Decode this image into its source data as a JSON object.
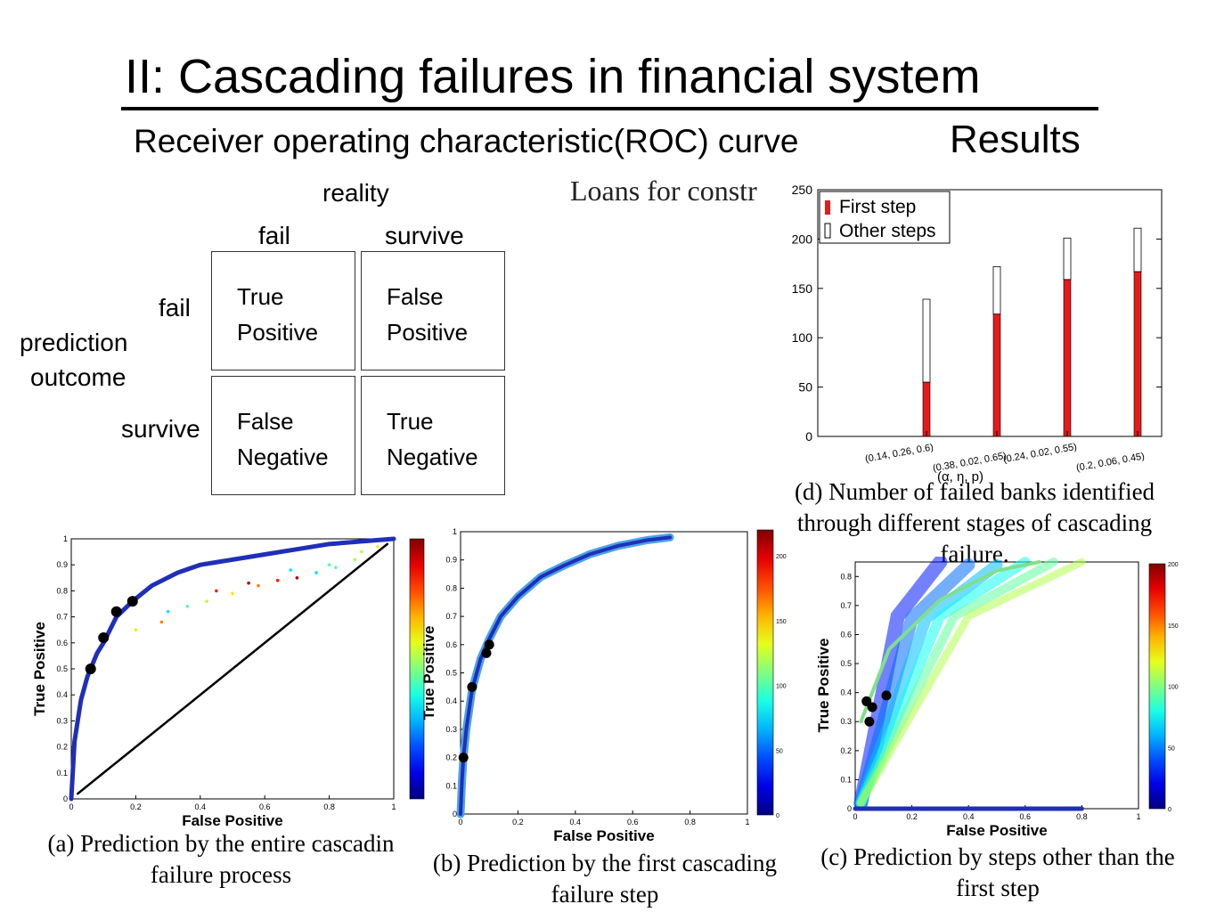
{
  "slide": {
    "title": "II: Cascading failures in financial system",
    "subtitle": "Receiver operating characteristic(ROC) curve",
    "results_label": "Results"
  },
  "confusion_matrix": {
    "reality_label": "reality",
    "col_fail": "fail",
    "col_survive": "survive",
    "row_fail": "fail",
    "row_survive": "survive",
    "prediction_label_1": "prediction",
    "prediction_label_2": "outcome",
    "tp_1": "True",
    "tp_2": "Positive",
    "fp_1": "False",
    "fp_2": "Positive",
    "fn_1": "False",
    "fn_2": "Negative",
    "tn_1": "True",
    "tn_2": "Negative"
  },
  "loans_heading": "Loans for constr",
  "caption_a": {
    "line1": "(a) Prediction by the entire cascadin",
    "line2": "failure process"
  },
  "caption_b": {
    "line1": "(b) Prediction by the first cascading",
    "line2": "failure step"
  },
  "caption_c": {
    "line1": "(c) Prediction by steps other than the",
    "line2": "first step"
  },
  "caption_d": {
    "line1": "(d) Number of failed banks identified",
    "line2": "through different stages of cascading",
    "line3": "failure."
  },
  "colors": {
    "first_step": "#e41a1c",
    "other_steps": "#ffffff",
    "roc_curve": "#1f2fb8"
  },
  "chart_data": [
    {
      "id": "d",
      "type": "bar",
      "stacked": true,
      "categories": [
        "(0.14, 0.26, 0.6)",
        "(0.38, 0.02, 0.65)",
        "(0.24, 0.02, 0.55)",
        "(0.2, 0.06, 0.45)"
      ],
      "series": [
        {
          "name": "First step",
          "values": [
            55,
            124,
            159,
            167
          ]
        },
        {
          "name": "Other steps",
          "values": [
            84,
            48,
            42,
            44
          ]
        }
      ],
      "xlabel": "(α, η, p)",
      "ylim": [
        0,
        250
      ],
      "yticks": [
        0,
        50,
        100,
        150,
        200,
        250
      ],
      "legend": "top-left"
    },
    {
      "id": "a",
      "type": "scatter",
      "xlabel": "False Positive",
      "ylabel": "True Positive",
      "xlim": [
        0,
        1
      ],
      "ylim": [
        0,
        1
      ],
      "xticks": [
        0,
        0.2,
        0.4,
        0.6,
        0.8,
        1
      ],
      "yticks": [
        0,
        0.1,
        0.2,
        0.3,
        0.4,
        0.5,
        0.6,
        0.7,
        0.8,
        0.9,
        1
      ],
      "curve": {
        "x": [
          0,
          0.01,
          0.03,
          0.05,
          0.08,
          0.1,
          0.14,
          0.19,
          0.25,
          0.33,
          0.4,
          0.5,
          0.6,
          0.7,
          0.8,
          0.9,
          1.0
        ],
        "y": [
          0,
          0.22,
          0.38,
          0.47,
          0.56,
          0.6,
          0.7,
          0.76,
          0.82,
          0.87,
          0.9,
          0.92,
          0.94,
          0.96,
          0.98,
          0.99,
          1.0
        ]
      },
      "scatter_points": {
        "x": [
          0.3,
          0.36,
          0.42,
          0.5,
          0.58,
          0.64,
          0.7,
          0.76,
          0.82,
          0.88,
          0.2,
          0.28,
          0.45,
          0.55,
          0.68,
          0.8,
          0.9,
          0.95
        ],
        "y": [
          0.72,
          0.74,
          0.76,
          0.79,
          0.82,
          0.84,
          0.85,
          0.87,
          0.89,
          0.92,
          0.65,
          0.68,
          0.8,
          0.83,
          0.88,
          0.9,
          0.95,
          0.97
        ]
      },
      "marked_points": {
        "x": [
          0.06,
          0.1,
          0.14,
          0.19
        ],
        "y": [
          0.5,
          0.62,
          0.72,
          0.76
        ]
      },
      "diagonal": {
        "x": [
          0.02,
          0.98
        ],
        "y": [
          0.02,
          0.98
        ]
      },
      "colorbar": {
        "min": 0,
        "max": 200
      }
    },
    {
      "id": "b",
      "type": "scatter",
      "xlabel": "False Positive",
      "ylabel": "True Positive",
      "xlim": [
        0,
        1
      ],
      "ylim": [
        0,
        1
      ],
      "xticks": [
        0,
        0.2,
        0.4,
        0.6,
        0.8,
        1
      ],
      "yticks": [
        0,
        0.1,
        0.2,
        0.3,
        0.4,
        0.5,
        0.6,
        0.7,
        0.8,
        0.9,
        1
      ],
      "curve": {
        "x": [
          0,
          0.005,
          0.01,
          0.02,
          0.04,
          0.07,
          0.1,
          0.14,
          0.2,
          0.28,
          0.36,
          0.45,
          0.55,
          0.65,
          0.73
        ],
        "y": [
          0,
          0.12,
          0.2,
          0.3,
          0.44,
          0.55,
          0.62,
          0.7,
          0.77,
          0.84,
          0.88,
          0.92,
          0.95,
          0.97,
          0.98
        ]
      },
      "marked_points": {
        "x": [
          0.01,
          0.04,
          0.09,
          0.1
        ],
        "y": [
          0.2,
          0.45,
          0.57,
          0.6
        ]
      },
      "colorbar": {
        "min": 0,
        "max": 220,
        "ticks": [
          0,
          50,
          100,
          150,
          200
        ]
      }
    },
    {
      "id": "c",
      "type": "scatter",
      "xlabel": "False Positive",
      "ylabel": "True Positive",
      "xlim": [
        0,
        1
      ],
      "ylim": [
        0,
        0.85
      ],
      "xticks": [
        0,
        0.2,
        0.4,
        0.6,
        0.8,
        1
      ],
      "yticks": [
        0,
        0.1,
        0.2,
        0.3,
        0.4,
        0.5,
        0.6,
        0.7,
        0.8
      ],
      "fan_rays": {
        "x": [
          0.3,
          0.4,
          0.5,
          0.6,
          0.7,
          0.8
        ],
        "y": [
          0.85,
          0.84,
          0.84,
          0.85,
          0.85,
          0.85
        ]
      },
      "baseline": {
        "x": [
          0,
          0.8
        ],
        "y": [
          0,
          0
        ]
      },
      "marked_points": {
        "x": [
          0.04,
          0.06,
          0.05,
          0.11
        ],
        "y": [
          0.37,
          0.35,
          0.3,
          0.39
        ]
      },
      "colorbar": {
        "min": 0,
        "max": 200,
        "ticks": [
          0,
          50,
          100,
          150,
          200
        ]
      }
    }
  ]
}
